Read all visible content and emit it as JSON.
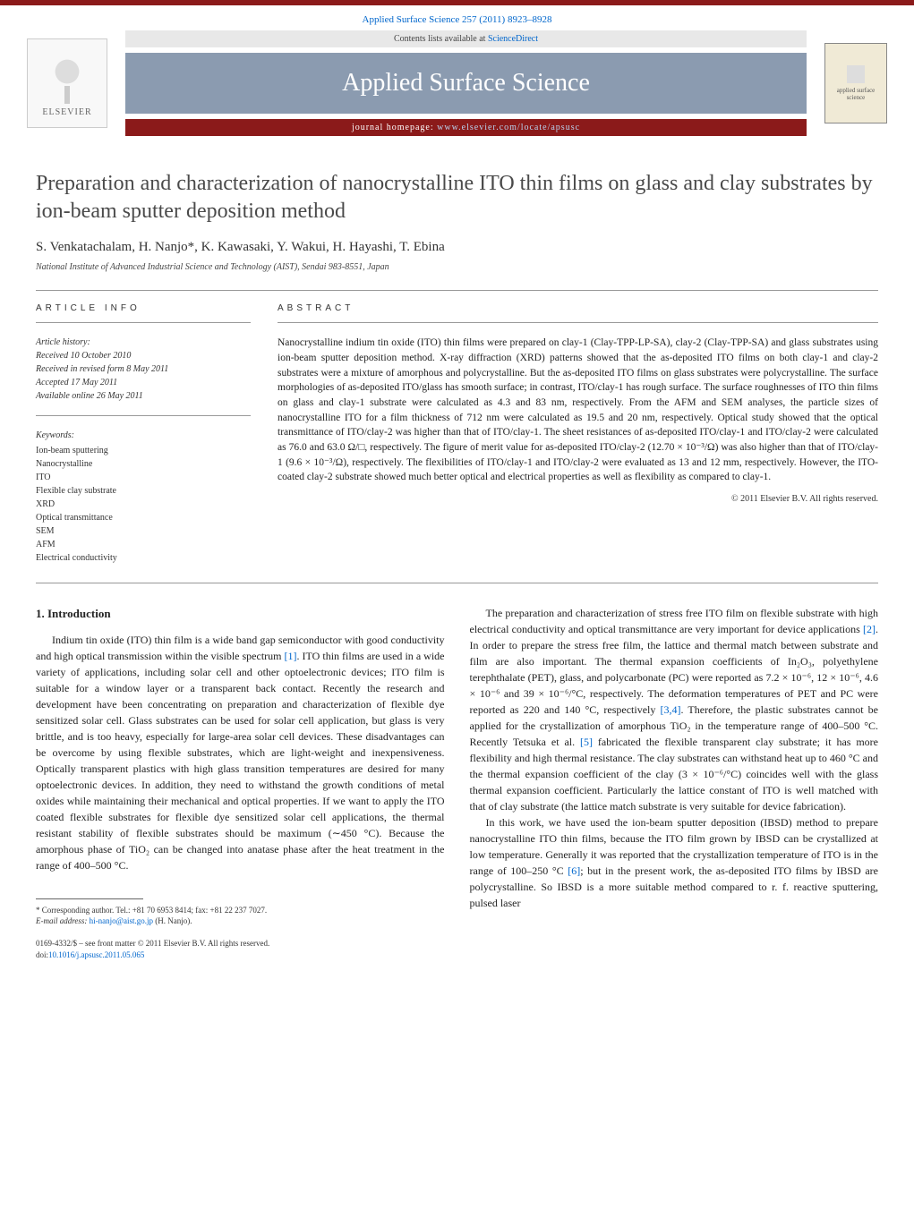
{
  "journal_ref": "Applied Surface Science 257 (2011) 8923–8928",
  "contents_text": "Contents lists available at ",
  "contents_link": "ScienceDirect",
  "journal_title": "Applied Surface Science",
  "homepage_prefix": "journal homepage: ",
  "homepage_url": "www.elsevier.com/locate/apsusc",
  "publisher": "ELSEVIER",
  "cover_text": "applied surface science",
  "article": {
    "title": "Preparation and characterization of nanocrystalline ITO thin films on glass and clay substrates by ion-beam sputter deposition method",
    "authors": "S. Venkatachalam, H. Nanjo*, K. Kawasaki, Y. Wakui, H. Hayashi, T. Ebina",
    "affiliation": "National Institute of Advanced Industrial Science and Technology (AIST), Sendai 983-8551, Japan"
  },
  "info_label": "article info",
  "abstract_label": "abstract",
  "history": {
    "label": "Article history:",
    "received": "Received 10 October 2010",
    "revised": "Received in revised form 8 May 2011",
    "accepted": "Accepted 17 May 2011",
    "online": "Available online 26 May 2011"
  },
  "keywords": {
    "label": "Keywords:",
    "items": [
      "Ion-beam sputtering",
      "Nanocrystalline",
      "ITO",
      "Flexible clay substrate",
      "XRD",
      "Optical transmittance",
      "SEM",
      "AFM",
      "Electrical conductivity"
    ]
  },
  "abstract_text": "Nanocrystalline indium tin oxide (ITO) thin films were prepared on clay-1 (Clay-TPP-LP-SA), clay-2 (Clay-TPP-SA) and glass substrates using ion-beam sputter deposition method. X-ray diffraction (XRD) patterns showed that the as-deposited ITO films on both clay-1 and clay-2 substrates were a mixture of amorphous and polycrystalline. But the as-deposited ITO films on glass substrates were polycrystalline. The surface morphologies of as-deposited ITO/glass has smooth surface; in contrast, ITO/clay-1 has rough surface. The surface roughnesses of ITO thin films on glass and clay-1 substrate were calculated as 4.3 and 83 nm, respectively. From the AFM and SEM analyses, the particle sizes of nanocrystalline ITO for a film thickness of 712 nm were calculated as 19.5 and 20 nm, respectively. Optical study showed that the optical transmittance of ITO/clay-2 was higher than that of ITO/clay-1. The sheet resistances of as-deposited ITO/clay-1 and ITO/clay-2 were calculated as 76.0 and 63.0 Ω/□, respectively. The figure of merit value for as-deposited ITO/clay-2 (12.70 × 10⁻³/Ω) was also higher than that of ITO/clay-1 (9.6 × 10⁻³/Ω), respectively. The flexibilities of ITO/clay-1 and ITO/clay-2 were evaluated as 13 and 12 mm, respectively. However, the ITO-coated clay-2 substrate showed much better optical and electrical properties as well as flexibility as compared to clay-1.",
  "copyright": "© 2011 Elsevier B.V. All rights reserved.",
  "intro_heading": "1. Introduction",
  "intro_p1_a": "Indium tin oxide (ITO) thin film is a wide band gap semiconductor with good conductivity and high optical transmission within the visible spectrum ",
  "intro_p1_ref1": "[1]",
  "intro_p1_b": ". ITO thin films are used in a wide variety of applications, including solar cell and other optoelectronic devices; ITO film is suitable for a window layer or a transparent back contact. Recently the research and development have been concentrating on preparation and characterization of flexible dye sensitized solar cell. Glass substrates can be used for solar cell application, but glass is very brittle, and is too heavy, especially for large-area solar cell devices. These disadvantages can be overcome by using flexible substrates, which are light-weight and inexpensiveness. Optically transparent plastics with high glass transition temperatures are desired for many optoelectronic devices. In addition, they need to withstand the growth conditions of metal oxides while maintaining their mechanical and optical properties. If we want to apply the ITO coated flexible substrates for flexible dye sensitized solar cell applications, the thermal resistant stability of flexible substrates should be maximum (∼450 °C). Because the amorphous phase of TiO₂ can be changed into anatase phase after the heat treatment in the range of 400–500 °C.",
  "intro_p2_a": "The preparation and characterization of stress free ITO film on flexible substrate with high electrical conductivity and optical transmittance are very important for device applications ",
  "intro_p2_ref2": "[2]",
  "intro_p2_b": ". In order to prepare the stress free film, the lattice and thermal match between substrate and film are also important. The thermal expansion coefficients of In₂O₃, polyethylene terephthalate (PET), glass, and polycarbonate (PC) were reported as 7.2 × 10⁻⁶, 12 × 10⁻⁶, 4.6 × 10⁻⁶ and 39 × 10⁻⁶/°C, respectively. The deformation temperatures of PET and PC were reported as 220 and 140 °C, respectively ",
  "intro_p2_ref34": "[3,4]",
  "intro_p2_c": ". Therefore, the plastic substrates cannot be applied for the crystallization of amorphous TiO₂ in the temperature range of 400–500 °C. Recently Tetsuka et al. ",
  "intro_p2_ref5": "[5]",
  "intro_p2_d": " fabricated the flexible transparent clay substrate; it has more flexibility and high thermal resistance. The clay substrates can withstand heat up to 460 °C and the thermal expansion coefficient of the clay (3 × 10⁻⁶/°C) coincides well with the glass thermal expansion coefficient. Particularly the lattice constant of ITO is well matched with that of clay substrate (the lattice match substrate is very suitable for device fabrication).",
  "intro_p3_a": "In this work, we have used the ion-beam sputter deposition (IBSD) method to prepare nanocrystalline ITO thin films, because the ITO film grown by IBSD can be crystallized at low temperature. Generally it was reported that the crystallization temperature of ITO is in the range of 100–250 °C ",
  "intro_p3_ref6": "[6]",
  "intro_p3_b": "; but in the present work, the as-deposited ITO films by IBSD are polycrystalline. So IBSD is a more suitable method compared to r. f. reactive sputtering, pulsed laser",
  "footer": {
    "corresponding": "* Corresponding author. Tel.: +81 70 6953 8414; fax: +81 22 237 7027.",
    "email_label": "E-mail address: ",
    "email": "hi-nanjo@aist.go.jp",
    "email_suffix": " (H. Nanjo).",
    "issn": "0169-4332/$ – see front matter © 2011 Elsevier B.V. All rights reserved.",
    "doi_label": "doi:",
    "doi": "10.1016/j.apsusc.2011.05.065"
  },
  "colors": {
    "header_bar": "#8b1a1a",
    "journal_box": "#8b9bb0",
    "link": "#0066cc",
    "text": "#222222"
  }
}
